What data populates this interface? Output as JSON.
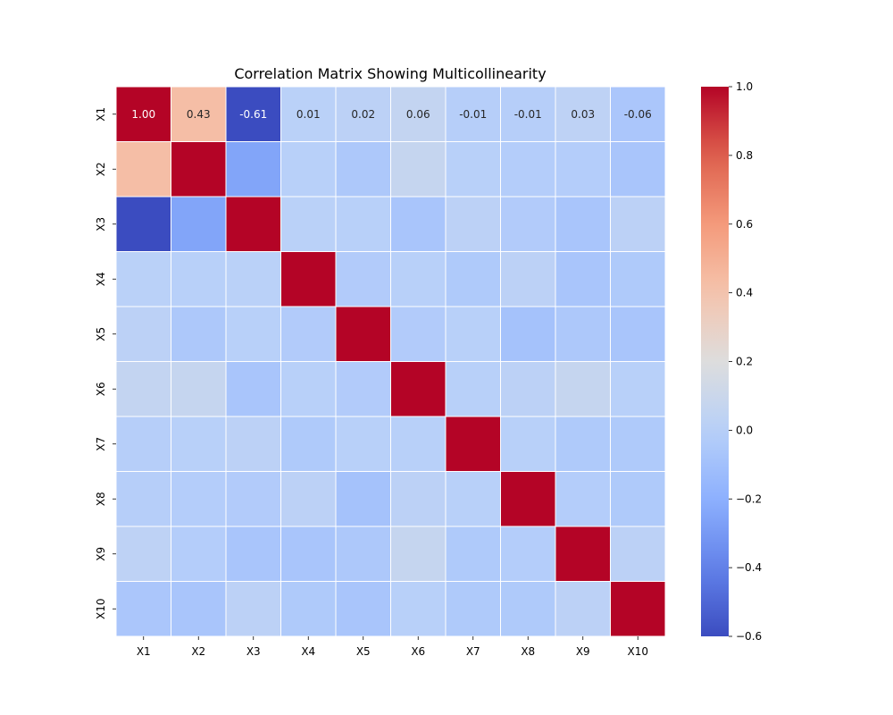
{
  "chart_data": {
    "type": "heatmap",
    "title": "Correlation Matrix Showing Multicollinearity",
    "xlabel": "",
    "ylabel": "",
    "colormap": "coolwarm",
    "vmin": -0.6,
    "vmax": 1.0,
    "colorbar_ticks": [
      1.0,
      0.8,
      0.6,
      0.4,
      0.2,
      0.0,
      -0.2,
      -0.4,
      -0.6
    ],
    "colorbar_tick_labels": [
      "1.0",
      "0.8",
      "0.6",
      "0.4",
      "0.2",
      "0.0",
      "−0.2",
      "−0.4",
      "−0.6"
    ],
    "x_categories": [
      "X1",
      "X2",
      "X3",
      "X4",
      "X5",
      "X6",
      "X7",
      "X8",
      "X9",
      "X10"
    ],
    "y_categories": [
      "X1",
      "X2",
      "X3",
      "X4",
      "X5",
      "X6",
      "X7",
      "X8",
      "X9",
      "X10"
    ],
    "values": [
      [
        1.0,
        0.43,
        -0.61,
        0.01,
        0.02,
        0.06,
        -0.01,
        -0.01,
        0.03,
        -0.06
      ],
      [
        0.43,
        1.0,
        -0.25,
        0.0,
        -0.05,
        0.07,
        0.0,
        -0.02,
        -0.02,
        -0.07
      ],
      [
        -0.61,
        -0.25,
        1.0,
        0.01,
        0.0,
        -0.07,
        0.02,
        -0.03,
        -0.07,
        0.02
      ],
      [
        0.01,
        0.0,
        0.01,
        1.0,
        -0.03,
        0.0,
        -0.04,
        0.02,
        -0.07,
        -0.04
      ],
      [
        0.02,
        -0.05,
        0.0,
        -0.03,
        1.0,
        -0.03,
        0.0,
        -0.09,
        -0.05,
        -0.07
      ],
      [
        0.06,
        0.07,
        -0.07,
        0.0,
        -0.03,
        1.0,
        0.0,
        0.02,
        0.07,
        0.0
      ],
      [
        -0.01,
        0.0,
        0.02,
        -0.04,
        0.0,
        0.0,
        1.0,
        0.0,
        -0.04,
        -0.04
      ],
      [
        -0.01,
        -0.02,
        -0.03,
        0.02,
        -0.09,
        0.02,
        0.0,
        1.0,
        -0.02,
        -0.04
      ],
      [
        0.03,
        -0.02,
        -0.07,
        -0.07,
        -0.05,
        0.07,
        -0.04,
        -0.02,
        1.0,
        0.02
      ],
      [
        -0.06,
        -0.07,
        0.02,
        -0.04,
        -0.07,
        0.0,
        -0.04,
        -0.04,
        0.02,
        1.0
      ]
    ],
    "annotated_rows": [
      0
    ],
    "grid": false,
    "legend": "colorbar-right"
  }
}
